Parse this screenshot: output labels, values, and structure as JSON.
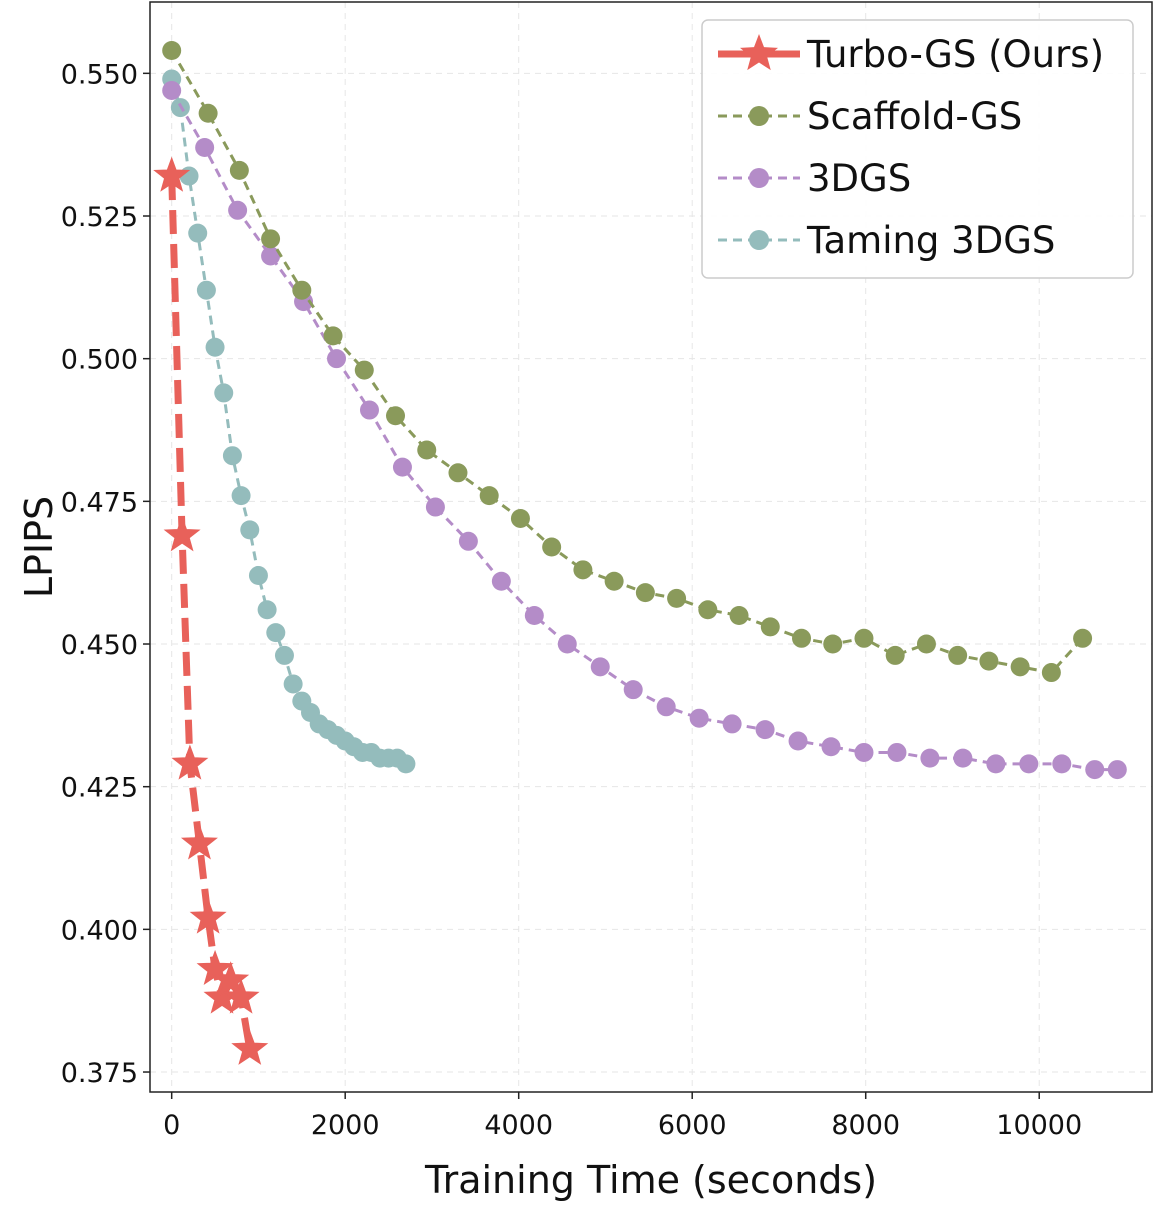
{
  "chart_data": {
    "type": "line",
    "title": "",
    "xlabel": "Training Time (seconds)",
    "ylabel": "LPIPS",
    "xlim": [
      -250,
      11300
    ],
    "ylim": [
      0.3715,
      0.5625
    ],
    "xticks": [
      0,
      2000,
      4000,
      6000,
      8000,
      10000
    ],
    "yticks": [
      0.375,
      0.4,
      0.425,
      0.45,
      0.475,
      0.5,
      0.525,
      0.55
    ],
    "xtick_labels": [
      "0",
      "2000",
      "4000",
      "6000",
      "8000",
      "10000"
    ],
    "ytick_labels": [
      "0.375",
      "0.400",
      "0.425",
      "0.450",
      "0.475",
      "0.500",
      "0.525",
      "0.550"
    ],
    "grid": true,
    "legend_position": "top-right",
    "series": [
      {
        "name": "Turbo-GS (Ours)",
        "color": "#e8615a",
        "marker": "star",
        "dash": "dashed-thick",
        "x": [
          0,
          120,
          210,
          320,
          420,
          500,
          580,
          680,
          800,
          900
        ],
        "y": [
          0.532,
          0.469,
          0.429,
          0.415,
          0.402,
          0.393,
          0.388,
          0.391,
          0.388,
          0.379
        ]
      },
      {
        "name": "Scaffold-GS",
        "color": "#8a9a5b",
        "marker": "circle",
        "dash": "dashed",
        "x": [
          0,
          420,
          780,
          1140,
          1500,
          1860,
          2220,
          2580,
          2940,
          3300,
          3660,
          4020,
          4380,
          4740,
          5100,
          5460,
          5820,
          6180,
          6540,
          6900,
          7260,
          7620,
          7980,
          8340,
          8700,
          9060,
          9420,
          9780,
          10140,
          10500
        ],
        "y": [
          0.554,
          0.543,
          0.533,
          0.521,
          0.512,
          0.504,
          0.498,
          0.49,
          0.484,
          0.48,
          0.476,
          0.472,
          0.467,
          0.463,
          0.461,
          0.459,
          0.458,
          0.456,
          0.455,
          0.453,
          0.451,
          0.45,
          0.451,
          0.448,
          0.45,
          0.448,
          0.447,
          0.446,
          0.445,
          0.451
        ]
      },
      {
        "name": "3DGS",
        "color": "#b48cc8",
        "marker": "circle",
        "dash": "dashed",
        "x": [
          0,
          380,
          760,
          1140,
          1520,
          1900,
          2280,
          2660,
          3040,
          3420,
          3800,
          4180,
          4560,
          4940,
          5320,
          5700,
          6080,
          6460,
          6840,
          7220,
          7600,
          7980,
          8360,
          8740,
          9120,
          9500,
          9880,
          10260,
          10640,
          10900
        ],
        "y": [
          0.547,
          0.537,
          0.526,
          0.518,
          0.51,
          0.5,
          0.491,
          0.481,
          0.474,
          0.468,
          0.461,
          0.455,
          0.45,
          0.446,
          0.442,
          0.439,
          0.437,
          0.436,
          0.435,
          0.433,
          0.432,
          0.431,
          0.431,
          0.43,
          0.43,
          0.429,
          0.429,
          0.429,
          0.428,
          0.428
        ]
      },
      {
        "name": "Taming 3DGS",
        "color": "#94bcbc",
        "marker": "circle",
        "dash": "dashed",
        "x": [
          0,
          100,
          200,
          300,
          400,
          500,
          600,
          700,
          800,
          900,
          1000,
          1100,
          1200,
          1300,
          1400,
          1500,
          1600,
          1700,
          1800,
          1900,
          2000,
          2100,
          2200,
          2300,
          2400,
          2500,
          2600,
          2700
        ],
        "y": [
          0.549,
          0.544,
          0.532,
          0.522,
          0.512,
          0.502,
          0.494,
          0.483,
          0.476,
          0.47,
          0.462,
          0.456,
          0.452,
          0.448,
          0.443,
          0.44,
          0.438,
          0.436,
          0.435,
          0.434,
          0.433,
          0.432,
          0.431,
          0.431,
          0.43,
          0.43,
          0.43,
          0.429
        ]
      }
    ]
  }
}
